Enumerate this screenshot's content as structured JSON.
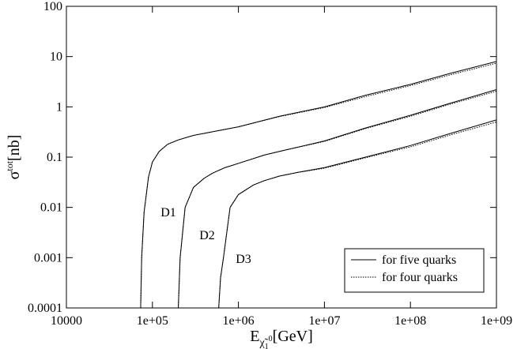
{
  "chart_data": {
    "type": "line",
    "xscale": "log",
    "yscale": "log",
    "xlabel": {
      "main": "E",
      "sub": "χ̃",
      "subsub": "1",
      "subsup": "0",
      "unit": "[GeV]"
    },
    "ylabel": {
      "main": "σ",
      "sup": "tot",
      "unit": "[nb]"
    },
    "xlim": [
      10000,
      1000000000
    ],
    "ylim": [
      0.0001,
      100
    ],
    "xticks": [
      {
        "value": 10000,
        "label": "10000"
      },
      {
        "value": 100000,
        "label": "1e+05"
      },
      {
        "value": 1000000,
        "label": "1e+06"
      },
      {
        "value": 10000000,
        "label": "1e+07"
      },
      {
        "value": 100000000,
        "label": "1e+08"
      },
      {
        "value": 1000000000,
        "label": "1e+09"
      }
    ],
    "yticks": [
      0.0001,
      0.001,
      0.01,
      0.1,
      1,
      10,
      100
    ],
    "color": "#000000",
    "legend_position": "lower right",
    "legend": [
      {
        "name": "for five quarks",
        "dash": "solid"
      },
      {
        "name": "for four quarks",
        "dash": "dotted"
      }
    ],
    "curves": [
      {
        "label": "D1",
        "x": [
          73000,
          75000,
          80000,
          90000,
          100000,
          120000,
          150000,
          200000,
          300000,
          500000,
          1000000,
          3000000,
          10000000,
          30000000,
          100000000,
          300000000,
          1000000000
        ],
        "five": [
          0.0001,
          0.001,
          0.008,
          0.04,
          0.08,
          0.13,
          0.18,
          0.22,
          0.27,
          0.32,
          0.4,
          0.65,
          1.0,
          1.7,
          2.8,
          4.7,
          8.0
        ],
        "four": [
          0.0001,
          0.001,
          0.008,
          0.04,
          0.08,
          0.13,
          0.18,
          0.22,
          0.27,
          0.32,
          0.4,
          0.64,
          0.97,
          1.6,
          2.65,
          4.4,
          7.4
        ]
      },
      {
        "label": "D2",
        "x": [
          200000,
          210000,
          240000,
          300000,
          400000,
          500000,
          700000,
          1000000,
          2000000,
          3000000,
          10000000,
          30000000,
          100000000,
          300000000,
          1000000000
        ],
        "five": [
          0.0001,
          0.001,
          0.01,
          0.025,
          0.038,
          0.048,
          0.062,
          0.075,
          0.11,
          0.13,
          0.21,
          0.38,
          0.68,
          1.2,
          2.2
        ],
        "four": [
          0.0001,
          0.001,
          0.01,
          0.025,
          0.038,
          0.048,
          0.062,
          0.075,
          0.11,
          0.13,
          0.205,
          0.37,
          0.65,
          1.15,
          2.05
        ]
      },
      {
        "label": "D3",
        "x": [
          590000,
          620000,
          670000,
          800000,
          1000000,
          1500000,
          2000000,
          3000000,
          5000000,
          10000000,
          30000000,
          100000000,
          300000000,
          1000000000
        ],
        "five": [
          0.0001,
          0.0004,
          0.001,
          0.01,
          0.018,
          0.028,
          0.034,
          0.042,
          0.05,
          0.062,
          0.1,
          0.17,
          0.3,
          0.55
        ],
        "four": [
          0.0001,
          0.0004,
          0.001,
          0.01,
          0.018,
          0.028,
          0.034,
          0.042,
          0.05,
          0.06,
          0.097,
          0.16,
          0.28,
          0.5
        ]
      }
    ]
  }
}
